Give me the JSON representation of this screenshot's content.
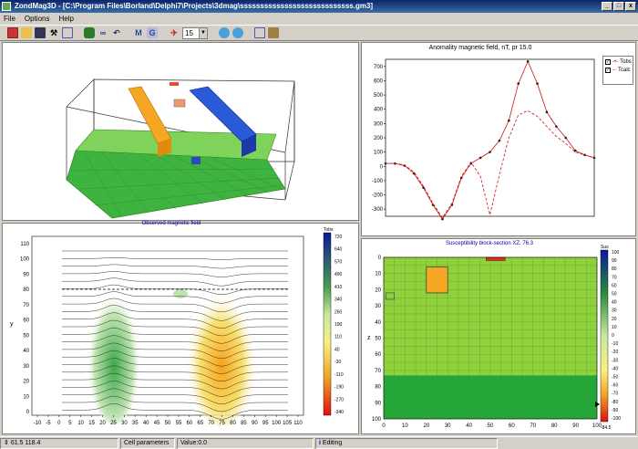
{
  "window": {
    "title": "ZondMag3D - [C:\\Program Files\\Borland\\Delphi7\\Projects\\3dmag\\ssssssssssssssssssssssssssss.gm3]",
    "min": "_",
    "max": "□",
    "close": "x"
  },
  "menu": [
    "File",
    "Options",
    "Help"
  ],
  "toolbar": {
    "zoom_value": "15",
    "icon_names": [
      "new-icon",
      "open-icon",
      "save-icon",
      "tools-icon",
      "copy-icon",
      "db-icon",
      "binoculars-icon",
      "undo-icon",
      "m-icon",
      "g-icon",
      "pin-icon",
      "globe-icon",
      "globe2-icon",
      "copy2-icon",
      "paste-icon"
    ],
    "m_label": "M",
    "g_label": "G"
  },
  "profile_chart": {
    "title": "Anomality magnetic field, nT,  pr 15.0",
    "legend": [
      "Tobs",
      "Tcalc"
    ],
    "chart_data": {
      "type": "line",
      "x": [
        0,
        1,
        2,
        3,
        4,
        5,
        6,
        7,
        8,
        9,
        10,
        11,
        12,
        13,
        14,
        15,
        16,
        17,
        18,
        19,
        20,
        21,
        22
      ],
      "series": [
        {
          "name": "Tobs",
          "values": [
            20,
            20,
            5,
            -50,
            -150,
            -270,
            -370,
            -270,
            -80,
            20,
            60,
            100,
            180,
            320,
            580,
            735,
            580,
            380,
            280,
            200,
            110,
            80,
            60
          ]
        },
        {
          "name": "Tcalc",
          "values": [
            20,
            20,
            10,
            -40,
            -140,
            -260,
            -360,
            -260,
            -70,
            30,
            -70,
            -340,
            -60,
            200,
            360,
            390,
            350,
            280,
            210,
            160,
            100,
            80,
            60
          ]
        }
      ],
      "ylim": [
        -350,
        750
      ],
      "yticks": [
        700,
        600,
        500,
        400,
        300,
        200,
        100,
        0,
        -100,
        -200,
        -300
      ]
    }
  },
  "observed": {
    "title": "Observed magnetic field",
    "xticks": [
      "-10",
      "-5",
      "0",
      "5",
      "10",
      "15",
      "20",
      "25",
      "30",
      "35",
      "40",
      "45",
      "50",
      "55",
      "60",
      "65",
      "70",
      "75",
      "80",
      "85",
      "90",
      "95",
      "100",
      "105",
      "110"
    ],
    "yticks": [
      "110",
      "100",
      "90",
      "80",
      "70",
      "60",
      "50",
      "40",
      "30",
      "20",
      "10",
      "0"
    ],
    "ylabel": "y",
    "colorbar_title": "Tobs",
    "colorbar": [
      "720",
      "640",
      "570",
      "490",
      "410",
      "340",
      "260",
      "190",
      "110",
      "40",
      "-30",
      "-110",
      "-190",
      "-270",
      "-340"
    ]
  },
  "section": {
    "title": "Susceptibility block-section XZ, 76.3",
    "xticks": [
      "0",
      "10",
      "20",
      "30",
      "40",
      "50",
      "60",
      "70",
      "80",
      "90",
      "100"
    ],
    "yticks": [
      "0",
      "10",
      "20",
      "30",
      "40",
      "50",
      "60",
      "70",
      "80",
      "90",
      "100"
    ],
    "ylabel": "z",
    "colorbar_title": "Sus",
    "colorbar": [
      "100",
      "90",
      "80",
      "70",
      "60",
      "50",
      "40",
      "30",
      "20",
      "10",
      "0",
      "-10",
      "-20",
      "-30",
      "-40",
      "-50",
      "-60",
      "-70",
      "-80",
      "-90",
      "-100"
    ],
    "colorbar_extra": "-84.5"
  },
  "status": {
    "coords": "61.5 118.4",
    "cell_params": "Cell parameters",
    "value": "Value:0.0",
    "mode": "Editing"
  },
  "colors": {
    "green_light": "#8fd13a",
    "green_dark": "#22a838",
    "orange": "#f5a623",
    "blue": "#1e4fcf",
    "red": "#e03020"
  }
}
